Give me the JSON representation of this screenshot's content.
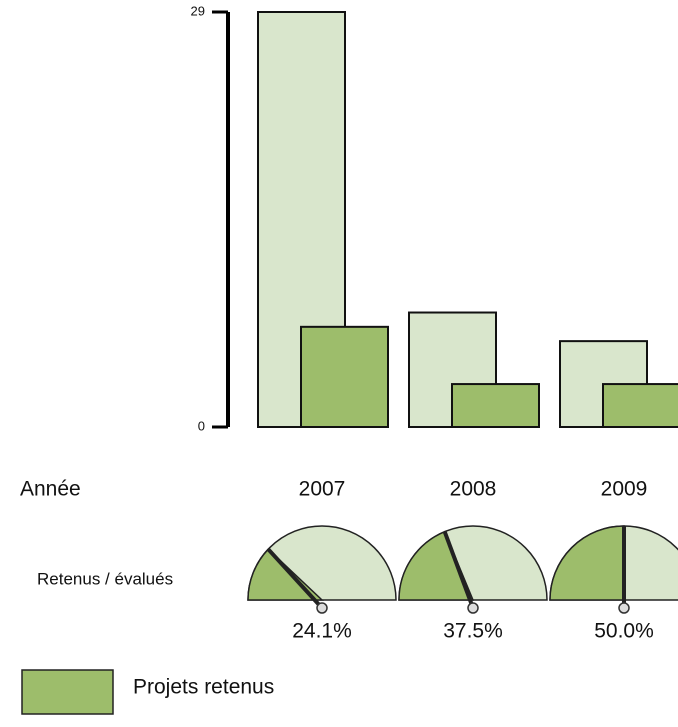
{
  "chart_data": {
    "type": "bar",
    "category_label": "Année",
    "categories": [
      "2007",
      "2008",
      "2009"
    ],
    "series": [
      {
        "color": "#d9e6cc",
        "values": [
          29,
          8,
          6
        ]
      },
      {
        "name": "Projets retenus",
        "color": "#9dbd6b",
        "values": [
          7,
          3,
          3
        ]
      }
    ],
    "ylim": [
      0,
      29
    ],
    "yticks": [
      0,
      29
    ],
    "gauge": {
      "label": "Retenus / évalués",
      "values": [
        24.1,
        37.5,
        50.0
      ],
      "value_labels": [
        "24.1%",
        "37.5%",
        "50.0%"
      ]
    }
  }
}
